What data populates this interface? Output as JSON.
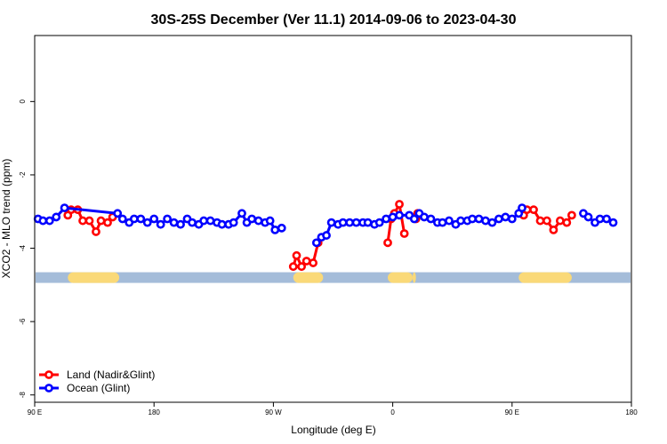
{
  "chart_data": {
    "type": "line",
    "title": "30S-25S December (Ver 11.1)   2014-09-06 to 2023-04-30",
    "xlabel": "Longitude (deg E)",
    "ylabel": "XCO2 - MLO trend (ppm)",
    "xlim": [
      90,
      450
    ],
    "ylim": [
      -8.2,
      1.8
    ],
    "x_ticks": [
      {
        "value": 90,
        "label": "90 E"
      },
      {
        "value": 162,
        "label": "180"
      },
      {
        "value": 234,
        "label": "90 W"
      },
      {
        "value": 306,
        "label": "0"
      },
      {
        "value": 378,
        "label": "90 E"
      },
      {
        "value": 450,
        "label": "180"
      }
    ],
    "y_ticks": [
      {
        "value": 0,
        "label": "0"
      },
      {
        "value": -2,
        "label": "-2"
      },
      {
        "value": -4,
        "label": "-4"
      },
      {
        "value": -6,
        "label": "-6"
      },
      {
        "value": -8,
        "label": "-8"
      }
    ],
    "band": {
      "y": -4.8,
      "ocean_color": "#a4bcd9",
      "land_color": "#fad978",
      "land_segments": [
        [
          110,
          141
        ],
        [
          246,
          264
        ],
        [
          303,
          318
        ],
        [
          318,
          320
        ],
        [
          382,
          414
        ]
      ]
    },
    "series": [
      {
        "name": "Land (Nadir&Glint)",
        "color": "#ff0000",
        "points": [
          [
            110,
            -3.1
          ],
          [
            112,
            -2.95
          ],
          [
            116,
            -2.95
          ],
          [
            119,
            -3.25
          ],
          [
            123,
            -3.25
          ],
          [
            127,
            -3.55
          ],
          [
            130,
            -3.25
          ],
          [
            134,
            -3.3
          ],
          [
            137,
            -3.15
          ],
          [
            null,
            null
          ],
          [
            246,
            -4.5
          ],
          [
            248,
            -4.2
          ],
          [
            251,
            -4.5
          ],
          [
            254,
            -4.35
          ],
          [
            258,
            -4.4
          ],
          [
            261,
            -3.85
          ],
          [
            null,
            null
          ],
          [
            303,
            -3.85
          ],
          [
            305,
            -3.2
          ],
          [
            307,
            -3.05
          ],
          [
            310,
            -2.8
          ],
          [
            313,
            -3.6
          ],
          [
            null,
            null
          ],
          [
            320,
            -3.2
          ],
          [
            321,
            -3.05
          ],
          [
            null,
            null
          ],
          [
            385,
            -3.1
          ],
          [
            387,
            -2.95
          ],
          [
            391,
            -2.95
          ],
          [
            395,
            -3.25
          ],
          [
            399,
            -3.25
          ],
          [
            403,
            -3.5
          ],
          [
            407,
            -3.25
          ],
          [
            411,
            -3.3
          ],
          [
            414,
            -3.1
          ]
        ]
      },
      {
        "name": "Ocean (Glint)",
        "color": "#0000ff",
        "points": [
          [
            92,
            -3.2
          ],
          [
            95,
            -3.25
          ],
          [
            99,
            -3.25
          ],
          [
            103,
            -3.15
          ],
          [
            108,
            -2.9
          ],
          [
            140,
            -3.05
          ],
          [
            143,
            -3.2
          ],
          [
            147,
            -3.3
          ],
          [
            150,
            -3.2
          ],
          [
            154,
            -3.2
          ],
          [
            158,
            -3.3
          ],
          [
            162,
            -3.2
          ],
          [
            166,
            -3.35
          ],
          [
            170,
            -3.2
          ],
          [
            174,
            -3.3
          ],
          [
            178,
            -3.35
          ],
          [
            182,
            -3.2
          ],
          [
            185,
            -3.3
          ],
          [
            189,
            -3.35
          ],
          [
            192,
            -3.25
          ],
          [
            196,
            -3.25
          ],
          [
            200,
            -3.3
          ],
          [
            203,
            -3.35
          ],
          [
            207,
            -3.35
          ],
          [
            210,
            -3.3
          ],
          [
            215,
            -3.05
          ],
          [
            218,
            -3.3
          ],
          [
            221,
            -3.2
          ],
          [
            225,
            -3.25
          ],
          [
            229,
            -3.3
          ],
          [
            232,
            -3.25
          ],
          [
            235,
            -3.5
          ],
          [
            239,
            -3.45
          ],
          [
            null,
            null
          ],
          [
            260,
            -3.85
          ],
          [
            263,
            -3.7
          ],
          [
            266,
            -3.65
          ],
          [
            269,
            -3.3
          ],
          [
            273,
            -3.35
          ],
          [
            276,
            -3.3
          ],
          [
            280,
            -3.3
          ],
          [
            284,
            -3.3
          ],
          [
            288,
            -3.3
          ],
          [
            291,
            -3.3
          ],
          [
            295,
            -3.35
          ],
          [
            298,
            -3.3
          ],
          [
            302,
            -3.2
          ],
          [
            306,
            -3.15
          ],
          [
            310,
            -3.1
          ],
          [
            316,
            -3.1
          ],
          [
            319,
            -3.2
          ],
          [
            322,
            -3.05
          ],
          [
            325,
            -3.15
          ],
          [
            329,
            -3.2
          ],
          [
            333,
            -3.3
          ],
          [
            336,
            -3.3
          ],
          [
            340,
            -3.25
          ],
          [
            344,
            -3.35
          ],
          [
            347,
            -3.25
          ],
          [
            351,
            -3.25
          ],
          [
            354,
            -3.2
          ],
          [
            358,
            -3.2
          ],
          [
            362,
            -3.25
          ],
          [
            366,
            -3.3
          ],
          [
            370,
            -3.2
          ],
          [
            374,
            -3.15
          ],
          [
            378,
            -3.2
          ],
          [
            382,
            -3.05
          ],
          [
            384,
            -2.9
          ],
          [
            null,
            null
          ],
          [
            421,
            -3.05
          ],
          [
            424,
            -3.15
          ],
          [
            428,
            -3.3
          ],
          [
            431,
            -3.2
          ],
          [
            435,
            -3.2
          ],
          [
            439,
            -3.3
          ]
        ]
      }
    ],
    "legend": {
      "placement": "bottom-left",
      "entries": [
        "Land (Nadir&Glint)",
        "Ocean (Glint)"
      ]
    },
    "grid": false
  }
}
